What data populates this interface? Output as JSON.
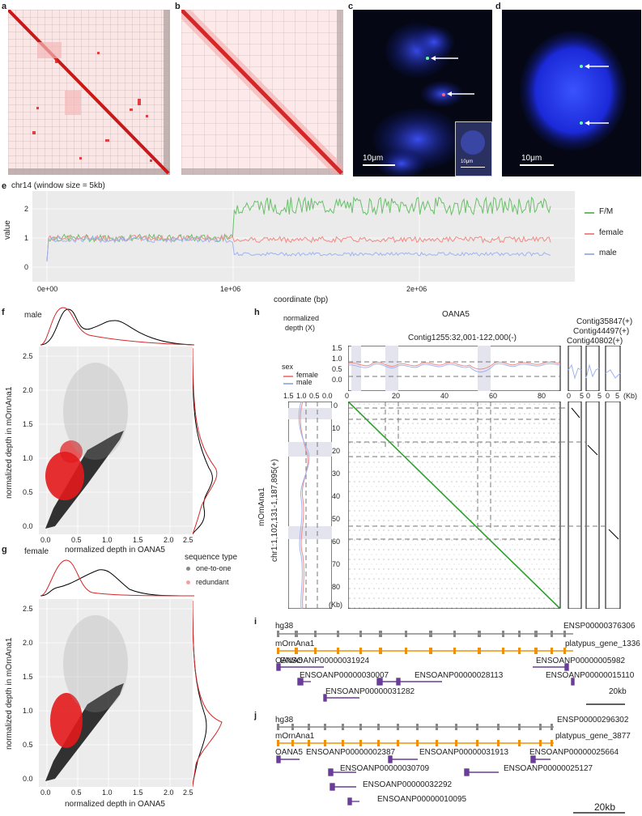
{
  "panels": {
    "a": "a",
    "b": "b",
    "c": "c",
    "d": "d",
    "e": "e",
    "f": "f",
    "g": "g",
    "h": "h",
    "i": "i",
    "j": "j"
  },
  "colors": {
    "hic_red": "#d62728",
    "hic_light": "#fbe3e3",
    "fish_blue": "#1a2bd0",
    "fm": "#6abf69",
    "female": "#f08a84",
    "male": "#9fb3f0",
    "redundant": "#e31a1c",
    "one_to_one": "#000000",
    "dotplot_green": "#2ca02c",
    "gene_gray": "#888888",
    "gene_orange": "#f0900a",
    "gene_purple": "#6a3d9a"
  },
  "fish": {
    "c_scale": "10μm",
    "c_inset_scale": "10μm",
    "d_scale": "10μm"
  },
  "panel_e": {
    "title": "chr14 (window size = 5kb)",
    "ylabel": "value",
    "xlabel": "coordinate (bp)",
    "yticks": [
      "0",
      "1",
      "2"
    ],
    "xticks": [
      "0e+00",
      "1e+06",
      "2e+06"
    ],
    "legend": [
      "F/M",
      "female",
      "male"
    ]
  },
  "panel_f": {
    "sex": "male",
    "ylabel": "normalized depth in mOrnAna1",
    "xlabel": "normalized depth in OANA5",
    "ticks": [
      "0.0",
      "0.5",
      "1.0",
      "1.5",
      "2.0",
      "2.5"
    ],
    "legend_title": "sequence type",
    "legend": [
      "one-to-one",
      "redundant"
    ]
  },
  "panel_g": {
    "sex": "female",
    "ylabel": "normalized depth in mOrnAna1",
    "xlabel": "normalized depth in OANA5",
    "ticks": [
      "0.0",
      "0.5",
      "1.0",
      "1.5",
      "2.0",
      "2.5"
    ]
  },
  "panel_h": {
    "title": "OANA5",
    "depth_label_1": "normalized",
    "depth_label_2": "depth (X)",
    "sex_title": "sex",
    "sex_legend": [
      "female",
      "male"
    ],
    "contig_main": "Contig1255:32,001-122,000(-)",
    "contigs_small": [
      "Contig35847(+)",
      "Contig44497(+)",
      "Contig40802(+)"
    ],
    "top_yticks": [
      "1.5",
      "1.0",
      "0.5",
      "0.0"
    ],
    "top_xticks": [
      "0",
      "20",
      "40",
      "60",
      "80"
    ],
    "small_xticks": [
      "0",
      "5",
      "0",
      "5",
      "0",
      "5"
    ],
    "kb": "(Kb)",
    "left_xticks": [
      "1.5",
      "1.0",
      "0.5",
      "0.0"
    ],
    "left_yticks": [
      "0",
      "10",
      "20",
      "30",
      "40",
      "50",
      "60",
      "70",
      "80"
    ],
    "kb2": "(Kb)",
    "y_label_1": "mOmAna1",
    "y_label_2": "chr1:1,102,131-1,187,895(+)"
  },
  "panel_i": {
    "rows": [
      "hg38",
      "mOrnAna1",
      "OANA5"
    ],
    "genes": {
      "hg": "ENSP00000376306",
      "mo": "platypus_gene_1336",
      "g1": "ENSOANP00000031924",
      "g2": "ENSOANP00000005982",
      "g3": "ENSOANP00000030007",
      "g4": "ENSOANP00000028113",
      "g5": "ENSOANP00000015110",
      "g6": "ENSOANP00000031282"
    },
    "scale": "20kb"
  },
  "panel_j": {
    "rows": [
      "hg38",
      "mOrnAna1",
      "OANA5"
    ],
    "genes": {
      "hg": "ENSP00000296302",
      "mo": "platypus_gene_3877",
      "g1": "ENSOANP00000002387",
      "g2": "ENSOANP00000031913",
      "g3": "ENSOANP00000025664",
      "g4": "ENSOANP00000030709",
      "g5": "ENSOANP00000025127",
      "g6": "ENSOANP00000032292",
      "g7": "ENSOANP00000010095"
    },
    "scale": "20kb"
  }
}
